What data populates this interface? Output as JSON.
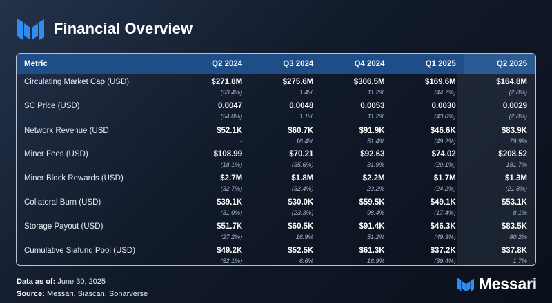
{
  "header": {
    "title": "Financial Overview"
  },
  "table": {
    "columns": [
      "Metric",
      "Q2 2024",
      "Q3 2024",
      "Q4 2024",
      "Q1 2025",
      "Q2 2025"
    ],
    "rows": [
      {
        "metric": "Circulating Market Cap (USD)",
        "cells": [
          {
            "v": "$271.8M",
            "c": "(53.4%)"
          },
          {
            "v": "$275.6M",
            "c": "1.4%"
          },
          {
            "v": "$306.5M",
            "c": "11.2%"
          },
          {
            "v": "$169.6M",
            "c": "(44.7%)"
          },
          {
            "v": "$164.8M",
            "c": "(2.8%)"
          }
        ]
      },
      {
        "metric": "SC Price (USD)",
        "cells": [
          {
            "v": "0.0047",
            "c": "(54.0%)"
          },
          {
            "v": "0.0048",
            "c": "1.1%"
          },
          {
            "v": "0.0053",
            "c": "11.2%"
          },
          {
            "v": "0.0030",
            "c": "(43.0%)"
          },
          {
            "v": "0.0029",
            "c": "(2.8%)"
          }
        ]
      },
      {
        "metric": "Network Revenue (USD",
        "cells": [
          {
            "v": "$52.1K",
            "c": "-"
          },
          {
            "v": "$60.7K",
            "c": "16.4%"
          },
          {
            "v": "$91.9K",
            "c": "51.4%"
          },
          {
            "v": "$46.6K",
            "c": "(49.2%)"
          },
          {
            "v": "$83.9K",
            "c": "79.9%"
          }
        ]
      },
      {
        "metric": "Miner Fees (USD)",
        "cells": [
          {
            "v": "$108.99",
            "c": "(18.1%)"
          },
          {
            "v": "$70.21",
            "c": "(35.6%)"
          },
          {
            "v": "$92.63",
            "c": "31.9%"
          },
          {
            "v": "$74.02",
            "c": "(20.1%)"
          },
          {
            "v": "$208.52",
            "c": "181.7%"
          }
        ]
      },
      {
        "metric": "Miner Block Rewards (USD)",
        "cells": [
          {
            "v": "$2.7M",
            "c": "(32.7%)"
          },
          {
            "v": "$1.8M",
            "c": "(32.4%)"
          },
          {
            "v": "$2.2M",
            "c": "23.2%"
          },
          {
            "v": "$1.7M",
            "c": "(24.2%)"
          },
          {
            "v": "$1.3M",
            "c": "(21.8%)"
          }
        ]
      },
      {
        "metric": "Collateral Burn (USD)",
        "cells": [
          {
            "v": "$39.1K",
            "c": "(31.0%)"
          },
          {
            "v": "$30.0K",
            "c": "(23.3%)"
          },
          {
            "v": "$59.5K",
            "c": "98.4%"
          },
          {
            "v": "$49.1K",
            "c": "(17.4%)"
          },
          {
            "v": "$53.1K",
            "c": "8.1%"
          }
        ]
      },
      {
        "metric": "Storage Payout (USD)",
        "cells": [
          {
            "v": "$51.7K",
            "c": "(27.2%)"
          },
          {
            "v": "$60.5K",
            "c": "16.9%"
          },
          {
            "v": "$91.4K",
            "c": "51.2%"
          },
          {
            "v": "$46.3K",
            "c": "(49.3%)"
          },
          {
            "v": "$83.5K",
            "c": "80.2%"
          }
        ]
      },
      {
        "metric": "Cumulative Siafund Pool (USD)",
        "cells": [
          {
            "v": "$49.2K",
            "c": "(52.1%)"
          },
          {
            "v": "$52.5K",
            "c": "6.6%"
          },
          {
            "v": "$61.3K",
            "c": "16.9%"
          },
          {
            "v": "$37.2K",
            "c": "(39.4%)"
          },
          {
            "v": "$37.8K",
            "c": "1.7%"
          }
        ]
      }
    ]
  },
  "footer": {
    "date_label": "Data as of:",
    "date_value": "June 30, 2025",
    "source_label": "Source:",
    "source_value": "Messari, Siascan, Sonarverse"
  },
  "brand": {
    "name": "Messari",
    "logo_icon": "messari-logo-icon"
  },
  "colors": {
    "accent": "#1f4d87",
    "logo_blue": "#2f8cf0",
    "text": "#ffffff"
  }
}
